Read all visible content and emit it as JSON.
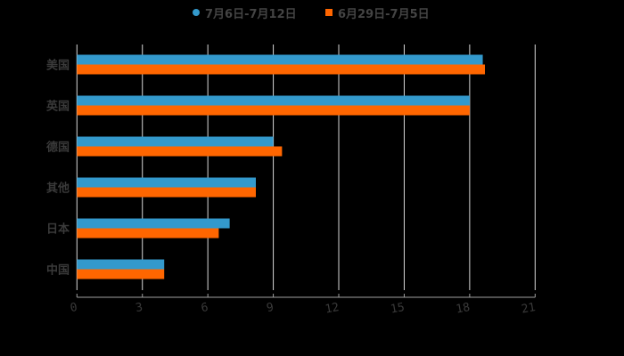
{
  "chart_data": {
    "type": "bar",
    "orientation": "horizontal",
    "title": "",
    "xlabel": "",
    "ylabel": "",
    "categories": [
      "美国",
      "英国",
      "德国",
      "其他",
      "日本",
      "中国"
    ],
    "series": [
      {
        "name": "7月6日-7月12日",
        "color": "#3399CC",
        "marker": "circle",
        "values": [
          18.6,
          18.0,
          9.0,
          8.2,
          7.0,
          4.0
        ]
      },
      {
        "name": "6月29日-7月5日",
        "color": "#FF6600",
        "marker": "square",
        "values": [
          18.7,
          18.0,
          9.4,
          8.2,
          6.5,
          4.0
        ]
      }
    ],
    "xlim": [
      0,
      21
    ],
    "xticks": [
      0,
      3,
      6,
      9,
      12,
      15,
      18,
      21
    ],
    "grid": true,
    "legend_position": "top"
  },
  "legend": {
    "items": [
      {
        "label": "7月6日-7月12日",
        "color": "#3399CC"
      },
      {
        "label": "6月29日-7月5日",
        "color": "#FF6600"
      }
    ]
  }
}
